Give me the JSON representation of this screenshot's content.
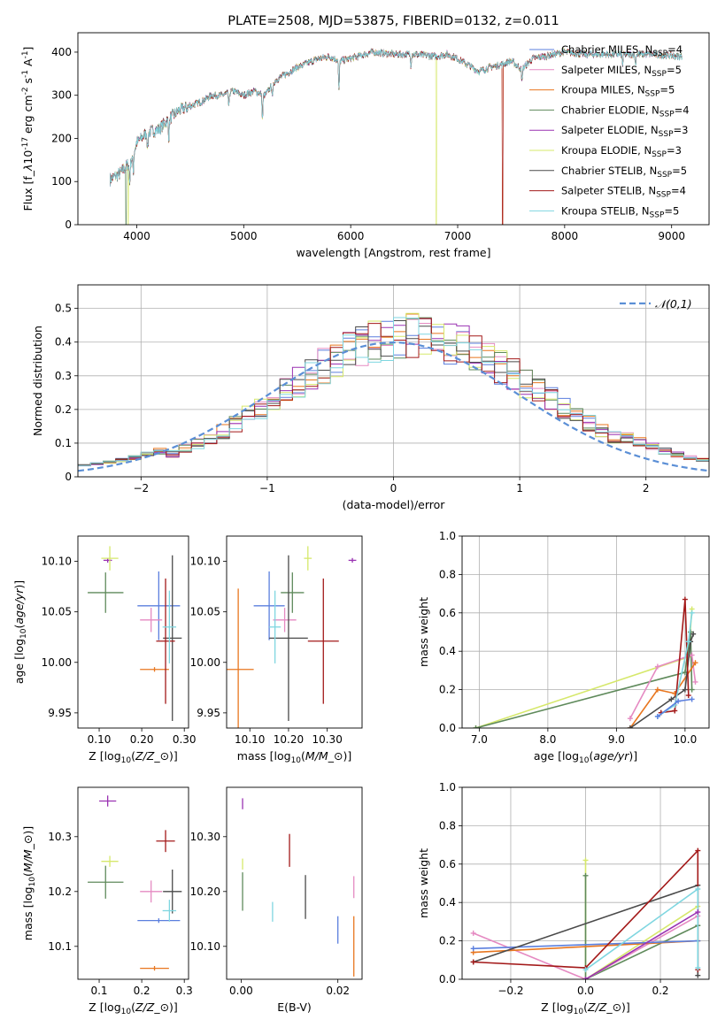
{
  "colors": {
    "Chabrier MILES": "#5b7fde",
    "Salpeter MILES": "#e58ac2",
    "Kroupa MILES": "#e8761f",
    "Chabrier ELODIE": "#5f8a5b",
    "Salpeter ELODIE": "#9a32b2",
    "Kroupa ELODIE": "#d6e86b",
    "Chabrier STELIB": "#4a4a4a",
    "Salpeter STELIB": "#a31919",
    "Kroupa STELIB": "#7fd6e0",
    "normal_curve": "#5b8fd6"
  },
  "chart_data": [
    {
      "id": "spectrum",
      "type": "line",
      "title": "PLATE=2508, MJD=53875, FIBERID=0132, z=0.011",
      "xlabel": "wavelength [Angstrom, rest frame]",
      "ylabel": "Flux [f$_\\lambda$10$^{-17}$ erg cm$^{-2}$ s$^{-1}$ A$^{-1}$]",
      "xlim": [
        3450,
        9350
      ],
      "ylim": [
        0,
        445
      ],
      "xticks": [
        4000,
        5000,
        6000,
        7000,
        8000,
        9000
      ],
      "yticks": [
        0,
        100,
        200,
        300,
        400
      ],
      "grid": false,
      "legend_position": "top-right",
      "legend": [
        {
          "name": "Chabrier MILES",
          "nssp": "4"
        },
        {
          "name": "Salpeter MILES",
          "nssp": "5"
        },
        {
          "name": "Kroupa MILES",
          "nssp": "5"
        },
        {
          "name": "Chabrier ELODIE",
          "nssp": "4"
        },
        {
          "name": "Salpeter ELODIE",
          "nssp": "3"
        },
        {
          "name": "Kroupa ELODIE",
          "nssp": "3"
        },
        {
          "name": "Chabrier STELIB",
          "nssp": "5"
        },
        {
          "name": "Salpeter STELIB",
          "nssp": "4"
        },
        {
          "name": "Kroupa STELIB",
          "nssp": "5"
        }
      ],
      "continuum": [
        [
          3750,
          105
        ],
        [
          3850,
          120
        ],
        [
          3950,
          150
        ],
        [
          4000,
          190
        ],
        [
          4100,
          215
        ],
        [
          4200,
          220
        ],
        [
          4300,
          245
        ],
        [
          4400,
          265
        ],
        [
          4500,
          275
        ],
        [
          4600,
          285
        ],
        [
          4700,
          300
        ],
        [
          4800,
          300
        ],
        [
          4900,
          310
        ],
        [
          5000,
          300
        ],
        [
          5100,
          310
        ],
        [
          5200,
          300
        ],
        [
          5300,
          335
        ],
        [
          5500,
          365
        ],
        [
          5700,
          385
        ],
        [
          5800,
          390
        ],
        [
          5900,
          380
        ],
        [
          6000,
          385
        ],
        [
          6200,
          400
        ],
        [
          6400,
          395
        ],
        [
          6600,
          395
        ],
        [
          6800,
          390
        ],
        [
          6900,
          395
        ],
        [
          7000,
          385
        ],
        [
          7100,
          370
        ],
        [
          7200,
          355
        ],
        [
          7300,
          365
        ],
        [
          7400,
          370
        ],
        [
          7500,
          380
        ],
        [
          7600,
          360
        ],
        [
          7700,
          385
        ],
        [
          7800,
          390
        ],
        [
          8000,
          400
        ],
        [
          8200,
          395
        ],
        [
          8500,
          395
        ],
        [
          8800,
          395
        ],
        [
          9100,
          390
        ]
      ],
      "absorption_dips": [
        [
          3934,
          50
        ],
        [
          3968,
          45
        ],
        [
          4102,
          40
        ],
        [
          4300,
          45
        ],
        [
          4861,
          35
        ],
        [
          5175,
          60
        ],
        [
          5270,
          30
        ],
        [
          5890,
          70
        ],
        [
          6563,
          25
        ],
        [
          7600,
          30
        ],
        [
          8542,
          25
        ],
        [
          8662,
          25
        ]
      ],
      "gaps": [
        {
          "name": "Kroupa ELODIE",
          "x": 6800
        },
        {
          "name": "Salpeter STELIB",
          "x": 7420
        },
        {
          "name": "Kroupa MILES",
          "x": 7420
        },
        {
          "name": "Chabrier ELODIE",
          "x": 3900
        },
        {
          "name": "Kroupa ELODIE",
          "x": 3920
        }
      ]
    },
    {
      "id": "residuals",
      "type": "bar",
      "xlabel": "(data-model)/error",
      "ylabel": "Normed distribution",
      "xlim": [
        -2.5,
        2.5
      ],
      "ylim": [
        0,
        0.57
      ],
      "xticks": [
        -2,
        -1,
        0,
        1,
        2
      ],
      "yticks": [
        0.0,
        0.1,
        0.2,
        0.3,
        0.4,
        0.5
      ],
      "grid": true,
      "legend_position": "top-right",
      "normal_label": "$\\mathcal{N}(0,1)$",
      "bin_width": 0.1
    },
    {
      "id": "age_vs_Z",
      "type": "scatter",
      "xlabel": "Z [log$_{10}$($Z/Z_\\odot$)]",
      "ylabel": "age  [log$_{10}$($age/yr$)]",
      "xlim": [
        0.05,
        0.31
      ],
      "ylim": [
        9.935,
        10.125
      ],
      "xticks": [
        0.1,
        0.2,
        0.3
      ],
      "yticks": [
        9.95,
        10.0,
        10.05,
        10.1
      ],
      "tick_format": "2",
      "points": [
        {
          "name": "Chabrier MILES",
          "x": 0.24,
          "y": 10.056,
          "xe": 0.05,
          "ye": 0.034
        },
        {
          "name": "Salpeter MILES",
          "x": 0.222,
          "y": 10.042,
          "xe": 0.026,
          "ye": 0.012
        },
        {
          "name": "Kroupa MILES",
          "x": 0.23,
          "y": 9.993,
          "xe": 0.034,
          "ye": 0.0
        },
        {
          "name": "Chabrier ELODIE",
          "x": 0.115,
          "y": 10.069,
          "xe": 0.042,
          "ye": 0.02
        },
        {
          "name": "Salpeter ELODIE",
          "x": 0.12,
          "y": 10.101,
          "xe": 0.01,
          "ye": 0.0
        },
        {
          "name": "Kroupa ELODIE",
          "x": 0.125,
          "y": 10.103,
          "xe": 0.02,
          "ye": 0.012
        },
        {
          "name": "Chabrier STELIB",
          "x": 0.272,
          "y": 10.024,
          "xe": 0.022,
          "ye": 0.082
        },
        {
          "name": "Salpeter STELIB",
          "x": 0.256,
          "y": 10.021,
          "xe": 0.022,
          "ye": 0.062
        },
        {
          "name": "Kroupa STELIB",
          "x": 0.265,
          "y": 10.035,
          "xe": 0.016,
          "ye": 0.036
        }
      ]
    },
    {
      "id": "age_vs_mass",
      "type": "scatter",
      "xlabel": "mass [log$_{10}$($M/M_\\odot$)]",
      "ylabel": "",
      "xlim": [
        10.04,
        10.39
      ],
      "ylim": [
        9.935,
        10.125
      ],
      "xticks": [
        10.1,
        10.2,
        10.3
      ],
      "yticks": [
        9.95,
        10.0,
        10.05,
        10.1
      ],
      "tick_format": "2",
      "points": [
        {
          "name": "Chabrier MILES",
          "x": 10.15,
          "y": 10.056,
          "xe": 0.04,
          "ye": 0.034
        },
        {
          "name": "Salpeter MILES",
          "x": 10.19,
          "y": 10.042,
          "xe": 0.03,
          "ye": 0.012
        },
        {
          "name": "Kroupa MILES",
          "x": 10.07,
          "y": 9.993,
          "xe": 0.04,
          "ye": 0.08
        },
        {
          "name": "Chabrier ELODIE",
          "x": 10.21,
          "y": 10.069,
          "xe": 0.03,
          "ye": 0.02
        },
        {
          "name": "Salpeter ELODIE",
          "x": 10.365,
          "y": 10.101,
          "xe": 0.01,
          "ye": 0.0
        },
        {
          "name": "Kroupa ELODIE",
          "x": 10.25,
          "y": 10.103,
          "xe": 0.01,
          "ye": 0.012
        },
        {
          "name": "Chabrier STELIB",
          "x": 10.2,
          "y": 10.024,
          "xe": 0.05,
          "ye": 0.082
        },
        {
          "name": "Salpeter STELIB",
          "x": 10.29,
          "y": 10.021,
          "xe": 0.04,
          "ye": 0.062
        },
        {
          "name": "Kroupa STELIB",
          "x": 10.165,
          "y": 10.035,
          "xe": 0.015,
          "ye": 0.036
        }
      ]
    },
    {
      "id": "mass_vs_Z",
      "type": "scatter",
      "xlabel": "Z [log$_{10}$($Z/Z_\\odot$)]",
      "ylabel": "mass [log$_{10}$($M/M_\\odot$)]",
      "xlim": [
        0.05,
        0.31
      ],
      "ylim": [
        10.04,
        10.39
      ],
      "xticks": [
        0.1,
        0.2,
        0.3
      ],
      "yticks": [
        10.1,
        10.2,
        10.3
      ],
      "tick_format": "1",
      "points": [
        {
          "name": "Chabrier MILES",
          "x": 0.24,
          "y": 10.147,
          "xe": 0.05,
          "ye": 0.0
        },
        {
          "name": "Salpeter MILES",
          "x": 0.222,
          "y": 10.2,
          "xe": 0.026,
          "ye": 0.02
        },
        {
          "name": "Kroupa MILES",
          "x": 0.23,
          "y": 10.06,
          "xe": 0.034,
          "ye": 0.0
        },
        {
          "name": "Chabrier ELODIE",
          "x": 0.115,
          "y": 10.217,
          "xe": 0.042,
          "ye": 0.03
        },
        {
          "name": "Salpeter ELODIE",
          "x": 0.12,
          "y": 10.365,
          "xe": 0.02,
          "ye": 0.01
        },
        {
          "name": "Kroupa ELODIE",
          "x": 0.125,
          "y": 10.255,
          "xe": 0.02,
          "ye": 0.01
        },
        {
          "name": "Chabrier STELIB",
          "x": 0.272,
          "y": 10.2,
          "xe": 0.022,
          "ye": 0.04
        },
        {
          "name": "Salpeter STELIB",
          "x": 0.256,
          "y": 10.292,
          "xe": 0.022,
          "ye": 0.02
        },
        {
          "name": "Kroupa STELIB",
          "x": 0.265,
          "y": 10.165,
          "xe": 0.016,
          "ye": 0.02
        }
      ]
    },
    {
      "id": "mass_vs_EBV",
      "type": "scatter",
      "xlabel": "E(B-V)",
      "ylabel": "",
      "xlim": [
        -0.003,
        0.025
      ],
      "ylim": [
        10.04,
        10.39
      ],
      "xticks": [
        0.0,
        0.02
      ],
      "yticks": [
        10.1,
        10.2,
        10.3
      ],
      "tick_format": "2",
      "points": [
        {
          "name": "Chabrier MILES",
          "x": 0.02,
          "y": 10.13,
          "xe": 0.0,
          "ye": 0.025
        },
        {
          "name": "Salpeter MILES",
          "x": 0.0233,
          "y": 10.208,
          "xe": 0.0,
          "ye": 0.02
        },
        {
          "name": "Kroupa MILES",
          "x": 0.0233,
          "y": 10.1,
          "xe": 0.0,
          "ye": 0.055
        },
        {
          "name": "Chabrier ELODIE",
          "x": 0.0003,
          "y": 10.2,
          "xe": 0.0,
          "ye": 0.035
        },
        {
          "name": "Salpeter ELODIE",
          "x": 0.0003,
          "y": 10.36,
          "xe": 0.0,
          "ye": 0.01
        },
        {
          "name": "Kroupa ELODIE",
          "x": 0.0003,
          "y": 10.25,
          "xe": 0.0,
          "ye": 0.01
        },
        {
          "name": "Chabrier STELIB",
          "x": 0.0133,
          "y": 10.19,
          "xe": 0.0,
          "ye": 0.04
        },
        {
          "name": "Salpeter STELIB",
          "x": 0.01,
          "y": 10.275,
          "xe": 0.0,
          "ye": 0.03
        },
        {
          "name": "Kroupa STELIB",
          "x": 0.0065,
          "y": 10.163,
          "xe": 0.0,
          "ye": 0.018
        }
      ]
    },
    {
      "id": "weight_vs_age",
      "type": "line",
      "xlabel": "age  [log$_{10}$($age/yr$)]",
      "ylabel": "mass weight",
      "xlim": [
        6.75,
        10.35
      ],
      "ylim": [
        0,
        1.0
      ],
      "xticks": [
        7,
        8,
        9,
        10
      ],
      "yticks": [
        0.0,
        0.2,
        0.4,
        0.6,
        0.8,
        1.0
      ],
      "tick_format": "1",
      "grid": true,
      "series": [
        {
          "name": "Kroupa ELODIE",
          "points": [
            [
              6.95,
              0.0
            ],
            [
              10.05,
              0.37
            ],
            [
              10.1,
              0.62
            ]
          ]
        },
        {
          "name": "Chabrier ELODIE",
          "points": [
            [
              6.95,
              0.0
            ],
            [
              10.0,
              0.29
            ],
            [
              10.08,
              0.5
            ],
            [
              10.1,
              0.2
            ]
          ]
        },
        {
          "name": "Salpeter MILES",
          "points": [
            [
              9.2,
              0.05
            ],
            [
              9.6,
              0.32
            ],
            [
              10.1,
              0.38
            ],
            [
              10.15,
              0.24
            ]
          ]
        },
        {
          "name": "Kroupa MILES",
          "points": [
            [
              9.2,
              0.0
            ],
            [
              9.6,
              0.2
            ],
            [
              9.85,
              0.18
            ],
            [
              10.15,
              0.34
            ]
          ]
        },
        {
          "name": "Chabrier STELIB",
          "points": [
            [
              9.2,
              0.0
            ],
            [
              9.8,
              0.15
            ],
            [
              10.0,
              0.2
            ],
            [
              10.08,
              0.45
            ],
            [
              10.12,
              0.49
            ]
          ]
        },
        {
          "name": "Salpeter STELIB",
          "points": [
            [
              9.65,
              0.08
            ],
            [
              9.85,
              0.09
            ],
            [
              10.0,
              0.67
            ],
            [
              10.05,
              0.17
            ]
          ]
        },
        {
          "name": "Kroupa STELIB",
          "points": [
            [
              9.6,
              0.06
            ],
            [
              9.85,
              0.12
            ],
            [
              10.05,
              0.45
            ],
            [
              10.1,
              0.6
            ]
          ]
        },
        {
          "name": "Chabrier MILES",
          "points": [
            [
              9.6,
              0.06
            ],
            [
              9.9,
              0.14
            ],
            [
              10.1,
              0.15
            ]
          ]
        }
      ]
    },
    {
      "id": "weight_vs_Z",
      "type": "line",
      "xlabel": "Z [log$_{10}$($Z/Z_\\odot$)]",
      "ylabel": "mass weight",
      "xlim": [
        -0.33,
        0.33
      ],
      "ylim": [
        0,
        1.0
      ],
      "xticks": [
        -0.2,
        0.0,
        0.2
      ],
      "yticks": [
        0.0,
        0.2,
        0.4,
        0.6,
        0.8,
        1.0
      ],
      "tick_format": "1",
      "grid": true,
      "series": [
        {
          "name": "Kroupa ELODIE",
          "points": [
            [
              0.0,
              0.62
            ],
            [
              0.0,
              0.0
            ],
            [
              0.3,
              0.38
            ]
          ]
        },
        {
          "name": "Chabrier ELODIE",
          "points": [
            [
              0.0,
              0.54
            ],
            [
              0.0,
              0.0
            ],
            [
              0.3,
              0.28
            ]
          ]
        },
        {
          "name": "Salpeter MILES",
          "points": [
            [
              -0.3,
              0.24
            ],
            [
              0.0,
              0.0
            ],
            [
              0.3,
              0.33
            ]
          ]
        },
        {
          "name": "Kroupa MILES",
          "points": [
            [
              -0.3,
              0.14
            ],
            [
              0.3,
              0.2
            ]
          ]
        },
        {
          "name": "Chabrier MILES",
          "points": [
            [
              -0.3,
              0.16
            ],
            [
              0.3,
              0.2
            ]
          ]
        },
        {
          "name": "Chabrier STELIB",
          "points": [
            [
              -0.3,
              0.09
            ],
            [
              0.3,
              0.49
            ],
            [
              0.3,
              0.02
            ]
          ]
        },
        {
          "name": "Salpeter STELIB",
          "points": [
            [
              -0.3,
              0.09
            ],
            [
              0.0,
              0.06
            ],
            [
              0.3,
              0.67
            ],
            [
              0.3,
              0.05
            ]
          ]
        },
        {
          "name": "Kroupa STELIB",
          "points": [
            [
              0.0,
              0.05
            ],
            [
              0.3,
              0.47
            ],
            [
              0.3,
              0.06
            ]
          ]
        },
        {
          "name": "Salpeter ELODIE",
          "points": [
            [
              0.0,
              0.0
            ],
            [
              0.3,
              0.35
            ]
          ]
        }
      ]
    }
  ]
}
